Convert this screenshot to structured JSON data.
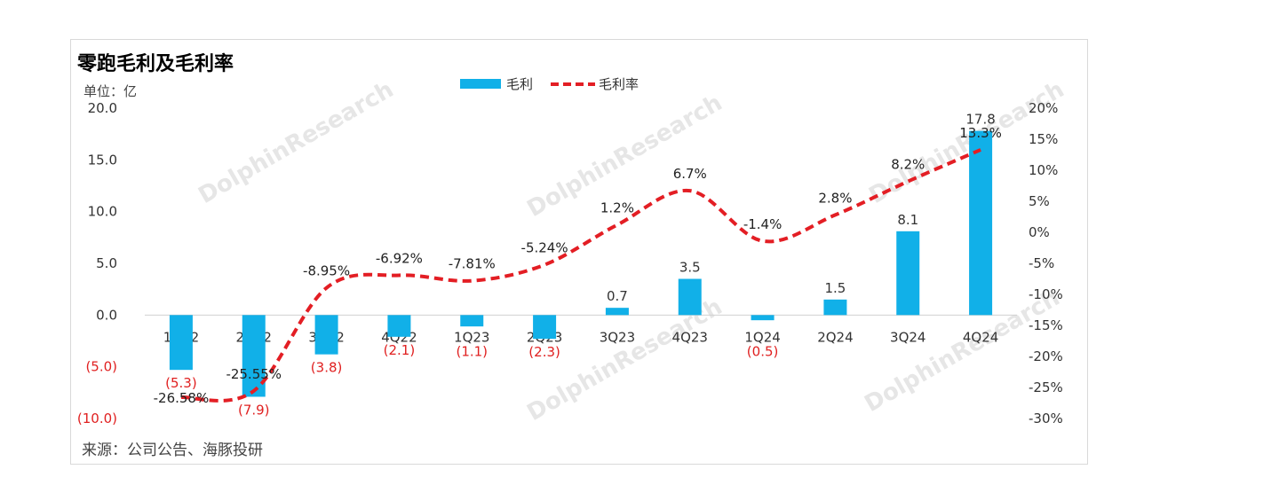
{
  "chart_data": {
    "type": "bar+line",
    "title": "零跑毛利及毛利率",
    "unit": "单位：亿",
    "source": "来源：公司公告、海豚投研",
    "watermark": "DolphinResearch",
    "watermark_cn": "海豚投研",
    "categories": [
      "1Q22",
      "2Q22",
      "3Q22",
      "4Q22",
      "1Q23",
      "2Q23",
      "3Q23",
      "4Q23",
      "1Q24",
      "2Q24",
      "3Q24",
      "4Q24"
    ],
    "series": [
      {
        "name": "毛利",
        "kind": "bar",
        "axis": "left",
        "color": "#11b0e8",
        "values": [
          -5.3,
          -7.9,
          -3.8,
          -2.1,
          -1.1,
          -2.3,
          0.7,
          3.5,
          -0.5,
          1.5,
          8.1,
          17.8
        ],
        "labels": [
          "(5.3)",
          "(7.9)",
          "(3.8)",
          "(2.1)",
          "(1.1)",
          "(2.3)",
          "0.7",
          "3.5",
          "(0.5)",
          "1.5",
          "8.1",
          "17.8"
        ]
      },
      {
        "name": "毛利率",
        "kind": "line",
        "axis": "right",
        "style": "dashed",
        "color": "#e31e24",
        "values": [
          -26.58,
          -25.55,
          -8.95,
          -6.92,
          -7.81,
          -5.24,
          1.2,
          6.7,
          -1.4,
          2.8,
          8.2,
          13.3
        ],
        "labels": [
          "-26.58%",
          "-25.55%",
          "-8.95%",
          "-6.92%",
          "-7.81%",
          "-5.24%",
          "1.2%",
          "6.7%",
          "-1.4%",
          "2.8%",
          "8.2%",
          "13.3%"
        ]
      }
    ],
    "y_left": {
      "ylim": [
        -10,
        20
      ],
      "ticks": [
        20,
        15,
        10,
        5,
        0,
        -5,
        -10
      ],
      "tick_labels": [
        "20.0",
        "15.0",
        "10.0",
        "5.0",
        "0.0",
        "(5.0)",
        "(10.0)"
      ]
    },
    "y_right": {
      "ylim": [
        -30,
        20
      ],
      "ticks": [
        20,
        15,
        10,
        5,
        0,
        -5,
        -10,
        -15,
        -20,
        -25,
        -30
      ],
      "tick_labels": [
        "20%",
        "15%",
        "10%",
        "5%",
        "0%",
        "-5%",
        "-10%",
        "-15%",
        "-20%",
        "-25%",
        "-30%"
      ]
    },
    "legend_position": "top-center",
    "grid": false,
    "colors": {
      "bar": "#11b0e8",
      "line": "#e31e24",
      "negative_label": "#e02020"
    }
  }
}
